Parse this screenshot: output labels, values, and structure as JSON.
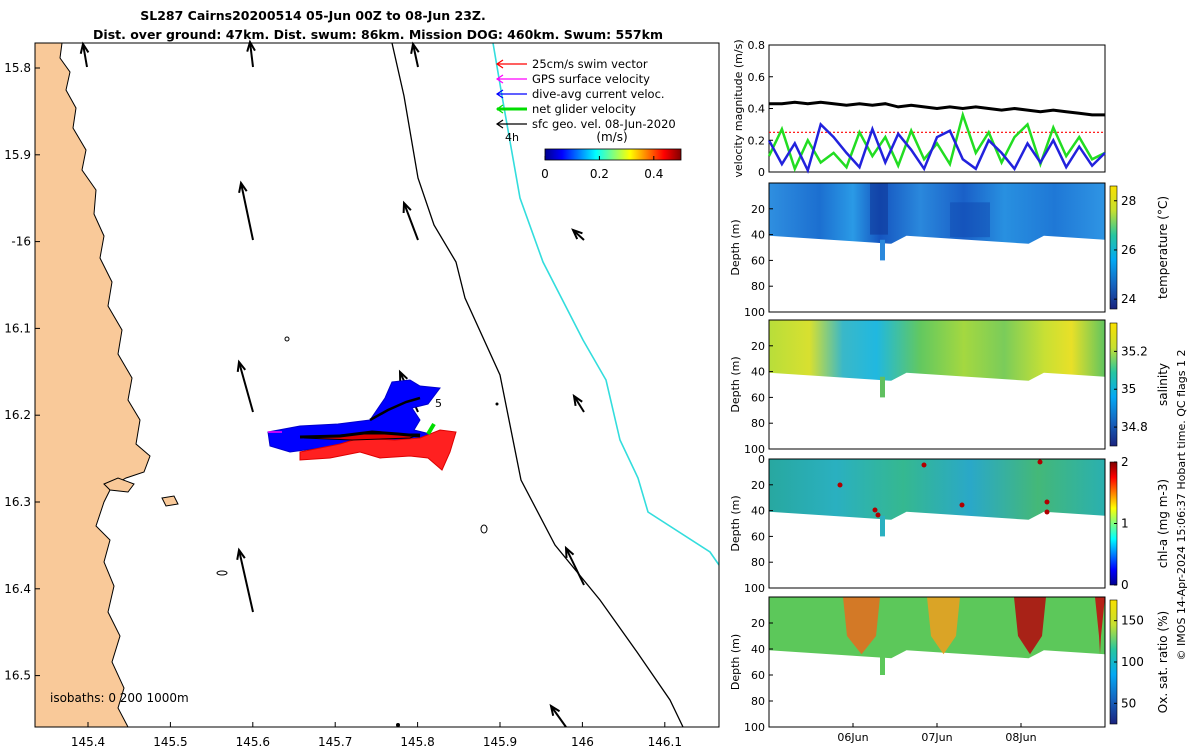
{
  "title": {
    "line1": "SL287 Cairns20200514 05-Jun 00Z to 08-Jun 23Z.",
    "line2": "Dist. over ground: 47km. Dist. swum: 86km. Mission DOG: 460km. Swum: 557km"
  },
  "map": {
    "lon_ticks": [
      "145.4",
      "145.5",
      "145.6",
      "145.7",
      "145.8",
      "145.9",
      "146",
      "146.1"
    ],
    "lat_ticks": [
      "15.8",
      "15.9",
      "-16",
      "16.1",
      "16.2",
      "16.3",
      "16.4",
      "16.5"
    ],
    "isobaths_label": "isobaths: 0   200  1000m",
    "waypoint_label": "5",
    "time_label": "4h",
    "legend": [
      {
        "label": "25cm/s swim vector",
        "color": "#ff0000"
      },
      {
        "label": "GPS surface velocity",
        "color": "#ff00ff"
      },
      {
        "label": "dive-avg current veloc.",
        "color": "#0000ff"
      },
      {
        "label": "net glider velocity",
        "color": "#00dd00"
      },
      {
        "label": "sfc geo. vel. 08-Jun-2020",
        "color": "#000000"
      }
    ],
    "colorbar": {
      "unit": "(m/s)",
      "ticks": [
        "0",
        "0.2",
        "0.4"
      ],
      "range": [
        0,
        0.5
      ]
    },
    "colors": {
      "land": "#f9c999",
      "isobath_200": "#000000",
      "isobath_1000": "#33dddd"
    }
  },
  "chart_data": [
    {
      "type": "line",
      "ylabel": "velocity magnitude (m/s)",
      "ylim": [
        0,
        0.8
      ],
      "yticks": [
        "0",
        "0.2",
        "0.4",
        "0.6",
        "0.8"
      ],
      "series": [
        {
          "color": "#000000",
          "values": [
            0.43,
            0.43,
            0.44,
            0.43,
            0.44,
            0.43,
            0.42,
            0.43,
            0.42,
            0.43,
            0.41,
            0.42,
            0.41,
            0.4,
            0.41,
            0.4,
            0.41,
            0.4,
            0.39,
            0.4,
            0.39,
            0.38,
            0.39,
            0.38,
            0.37,
            0.36,
            0.36
          ]
        },
        {
          "color": "#ff0000",
          "values": [
            0.25,
            0.25,
            0.25,
            0.25,
            0.25,
            0.25,
            0.25,
            0.25,
            0.25,
            0.25,
            0.25,
            0.25,
            0.25,
            0.25,
            0.25,
            0.25,
            0.25,
            0.25,
            0.25,
            0.25,
            0.25,
            0.25,
            0.25,
            0.25,
            0.25,
            0.25,
            0.25
          ]
        },
        {
          "color": "#22dd22",
          "values": [
            0.1,
            0.27,
            0.02,
            0.2,
            0.06,
            0.12,
            0.03,
            0.25,
            0.1,
            0.22,
            0.04,
            0.26,
            0.08,
            0.18,
            0.05,
            0.36,
            0.12,
            0.25,
            0.06,
            0.22,
            0.3,
            0.05,
            0.28,
            0.1,
            0.22,
            0.08,
            0.12
          ]
        },
        {
          "color": "#2222dd",
          "values": [
            0.2,
            0.05,
            0.18,
            0.01,
            0.3,
            0.22,
            0.12,
            0.03,
            0.27,
            0.06,
            0.24,
            0.14,
            0.02,
            0.22,
            0.26,
            0.08,
            0.02,
            0.2,
            0.12,
            0.02,
            0.18,
            0.06,
            0.2,
            0.03,
            0.16,
            0.04,
            0.12
          ]
        }
      ]
    },
    {
      "type": "heatmap",
      "variable": "temperature (°C)",
      "ylabel": "Depth (m)",
      "ylim": [
        0,
        100
      ],
      "yticks": [
        "20",
        "40",
        "60",
        "80",
        "100"
      ],
      "colorbar_ticks": [
        "24",
        "26",
        "28"
      ],
      "clim": [
        23.6,
        28.6
      ]
    },
    {
      "type": "heatmap",
      "variable": "salinity",
      "ylabel": "Depth (m)",
      "ylim": [
        0,
        100
      ],
      "yticks": [
        "20",
        "40",
        "60",
        "80",
        "100"
      ],
      "colorbar_ticks": [
        "34.8",
        "35",
        "35.2"
      ],
      "clim": [
        34.7,
        35.35
      ]
    },
    {
      "type": "heatmap",
      "variable": "chl-a (mg m-3)",
      "ylabel": "Depth (m)",
      "ylim": [
        0,
        100
      ],
      "yticks": [
        "0",
        "20",
        "40",
        "60",
        "80",
        "100"
      ],
      "colorbar_ticks": [
        "0",
        "1",
        "2"
      ],
      "clim": [
        0,
        2
      ]
    },
    {
      "type": "heatmap",
      "variable": "Ox. sat. ratio (%)",
      "ylabel": "Depth (m)",
      "ylim": [
        0,
        100
      ],
      "yticks": [
        "20",
        "40",
        "60",
        "80",
        "100"
      ],
      "colorbar_ticks": [
        "50",
        "100",
        "150"
      ],
      "clim": [
        25,
        175
      ]
    }
  ],
  "time_axis": {
    "ticks": [
      "06Jun",
      "07Jun",
      "08Jun"
    ]
  },
  "footer": "© IMOS 14-Apr-2024 15:06:37 Hobart time. QC flags 1  2"
}
